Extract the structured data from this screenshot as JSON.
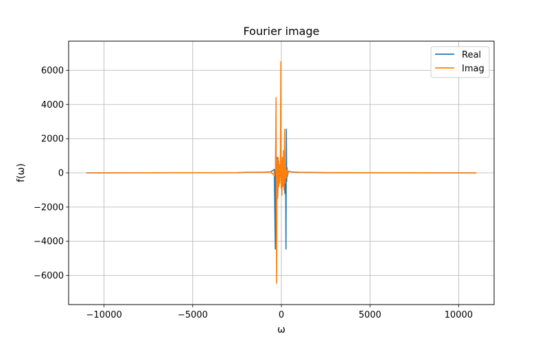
{
  "chart_data": {
    "type": "line",
    "title": "Fourier image",
    "xlabel": "ω",
    "ylabel": "f(ω)",
    "xlim": [
      -12000,
      12000
    ],
    "ylim": [
      -7700,
      7700
    ],
    "x_ticks": [
      -10000,
      -5000,
      0,
      5000,
      10000
    ],
    "x_tick_labels": [
      "−10000",
      "−5000",
      "0",
      "5000",
      "10000"
    ],
    "y_ticks": [
      -6000,
      -4000,
      -2000,
      0,
      2000,
      4000,
      6000
    ],
    "y_tick_labels": [
      "−6000",
      "−4000",
      "−2000",
      "0",
      "2000",
      "4000",
      "6000"
    ],
    "grid": true,
    "legend_position": "top-right",
    "series": [
      {
        "name": "Real",
        "color": "#1f77b4",
        "x": [
          -11000,
          -2500,
          -2000,
          -1000,
          -600,
          -400,
          -340,
          -320,
          -300,
          -280,
          -260,
          -240,
          -200,
          -160,
          -120,
          -80,
          -40,
          0,
          40,
          80,
          120,
          160,
          200,
          240,
          260,
          280,
          300,
          320,
          340,
          400,
          600,
          1000,
          2000,
          2500,
          11000
        ],
        "values": [
          0,
          10,
          30,
          40,
          60,
          200,
          -4450,
          1700,
          -2600,
          500,
          -1800,
          900,
          -1300,
          700,
          -600,
          300,
          -200,
          150,
          -250,
          400,
          -700,
          900,
          -1200,
          300,
          -4450,
          2550,
          -500,
          300,
          -200,
          100,
          50,
          30,
          20,
          10,
          0
        ]
      },
      {
        "name": "Imag",
        "color": "#ff7f0e",
        "x": [
          -11000,
          -2500,
          -2000,
          -1000,
          -600,
          -400,
          -330,
          -300,
          -270,
          -240,
          -210,
          -180,
          -150,
          -120,
          -90,
          -60,
          -30,
          -10,
          10,
          30,
          60,
          90,
          120,
          150,
          180,
          210,
          240,
          270,
          300,
          330,
          400,
          600,
          1000,
          2000,
          3000,
          11000
        ],
        "values": [
          0,
          20,
          40,
          30,
          50,
          -150,
          300,
          4400,
          -6450,
          800,
          -1500,
          900,
          -800,
          500,
          -600,
          200,
          6500,
          -900,
          700,
          -1300,
          900,
          -800,
          1300,
          -1000,
          2550,
          -600,
          400,
          -300,
          200,
          -150,
          80,
          60,
          40,
          30,
          20,
          0
        ]
      }
    ]
  }
}
